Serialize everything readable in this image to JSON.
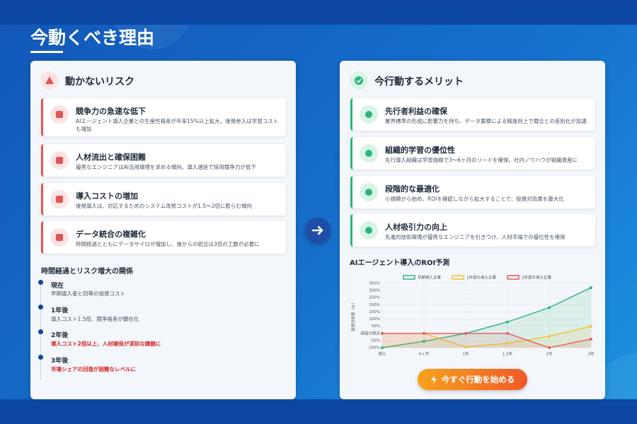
{
  "header": {
    "title": "今動くべき理由"
  },
  "risks": {
    "title": "動かないリスク",
    "items": [
      {
        "title": "競争力の急速な低下",
        "description": "AIエージェント導入企業との生産性格差が年率15%以上拡大。後発参入は学習コストも増加"
      },
      {
        "title": "人材流出と確保困難",
        "description": "優秀なエンジニアはAI活用環境を求める傾向。導入遅延で採用競争力が低下"
      },
      {
        "title": "導入コストの増加",
        "description": "後発導入は、対応するためのシステム改修コストが1.5〜2倍に膨らむ傾向"
      },
      {
        "title": "データ統合の複雑化",
        "description": "時間経過とともにデータサイロが増加し、後からの統合は3倍の工数が必要に"
      }
    ]
  },
  "timeline": {
    "title": "時間経過とリスク増大の関係",
    "entries": [
      {
        "label": "現在",
        "description": "早期導入者と同等の投資コスト"
      },
      {
        "label": "1年後",
        "description": "導入コスト1.5倍、競争格差が顕在化"
      },
      {
        "label": "2年後",
        "description": "導入コスト2倍以上、人材確保が深刻な課題に"
      },
      {
        "label": "3年後",
        "description": "市場シェアの回復が困難なレベルに"
      }
    ]
  },
  "merits": {
    "title": "今行動するメリット",
    "items": [
      {
        "title": "先行者利益の確保",
        "description": "業界標準の形成に影響力を持ち、データ蓄積による精度向上で競合との差別化が加速"
      },
      {
        "title": "組織的学習の優位性",
        "description": "先行導入組織は学習曲線で3〜6ヶ月のリードを確保。社内ノウハウが組織資産に"
      },
      {
        "title": "段階的な最適化",
        "description": "小規模から始め、ROIを確認しながら拡大することで、投資対効果を最大化"
      },
      {
        "title": "人材吸引力の向上",
        "description": "先進的技術環境が優秀なエンジニアを引きつけ、人材市場での優位性を確保"
      }
    ]
  },
  "chart_data": {
    "type": "line",
    "title": "AIエージェント導入のROI予測",
    "y_label": "投資対効果（%）",
    "categories": [
      "導入",
      "6ヶ月",
      "1年",
      "1.5年",
      "2年",
      "3年"
    ],
    "series": [
      {
        "name": "早期導入企業",
        "color": "#2fb57c",
        "values": [
          -100,
          -55,
          0,
          80,
          180,
          320
        ]
      },
      {
        "name": "1年遅れ導入企業",
        "color": "#f2c230",
        "values": [
          0,
          0,
          -95,
          -70,
          -20,
          50
        ]
      },
      {
        "name": "2年遅れ導入企業",
        "color": "#e35d5d",
        "values": [
          0,
          0,
          0,
          0,
          -100,
          -40
        ]
      }
    ],
    "ylim": [
      -100,
      350
    ],
    "yticks": [
      {
        "value": -100,
        "label": "-100%"
      },
      {
        "value": -50,
        "label": "-50%"
      },
      {
        "value": 0,
        "label": "損益分岐点"
      },
      {
        "value": 50,
        "label": "50%"
      },
      {
        "value": 100,
        "label": "100%"
      },
      {
        "value": 150,
        "label": "150%"
      },
      {
        "value": 200,
        "label": "200%"
      },
      {
        "value": 250,
        "label": "250%"
      },
      {
        "value": 300,
        "label": "300%"
      },
      {
        "value": 350,
        "label": "350%"
      }
    ],
    "grid": true,
    "legend": "top"
  },
  "button": {
    "label": "今すぐ行動を始める"
  }
}
